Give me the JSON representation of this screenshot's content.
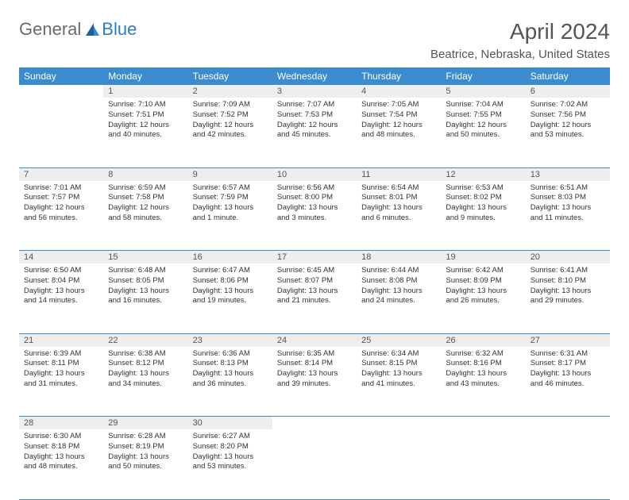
{
  "brand": {
    "word1": "General",
    "word2": "Blue"
  },
  "title": "April 2024",
  "location": "Beatrice, Nebraska, United States",
  "headers": [
    "Sunday",
    "Monday",
    "Tuesday",
    "Wednesday",
    "Thursday",
    "Friday",
    "Saturday"
  ],
  "colors": {
    "header_bg": "#3a8ccf",
    "header_text": "#ffffff",
    "daynum_bg": "#eeeeee",
    "border": "#3a8ccf",
    "logo_gray": "#6a6a6a",
    "logo_blue": "#2e7cc2"
  },
  "weeks": [
    [
      null,
      {
        "n": "1",
        "sr": "7:10 AM",
        "ss": "7:51 PM",
        "d1": "Daylight: 12 hours",
        "d2": "and 40 minutes."
      },
      {
        "n": "2",
        "sr": "7:09 AM",
        "ss": "7:52 PM",
        "d1": "Daylight: 12 hours",
        "d2": "and 42 minutes."
      },
      {
        "n": "3",
        "sr": "7:07 AM",
        "ss": "7:53 PM",
        "d1": "Daylight: 12 hours",
        "d2": "and 45 minutes."
      },
      {
        "n": "4",
        "sr": "7:05 AM",
        "ss": "7:54 PM",
        "d1": "Daylight: 12 hours",
        "d2": "and 48 minutes."
      },
      {
        "n": "5",
        "sr": "7:04 AM",
        "ss": "7:55 PM",
        "d1": "Daylight: 12 hours",
        "d2": "and 50 minutes."
      },
      {
        "n": "6",
        "sr": "7:02 AM",
        "ss": "7:56 PM",
        "d1": "Daylight: 12 hours",
        "d2": "and 53 minutes."
      }
    ],
    [
      {
        "n": "7",
        "sr": "7:01 AM",
        "ss": "7:57 PM",
        "d1": "Daylight: 12 hours",
        "d2": "and 56 minutes."
      },
      {
        "n": "8",
        "sr": "6:59 AM",
        "ss": "7:58 PM",
        "d1": "Daylight: 12 hours",
        "d2": "and 58 minutes."
      },
      {
        "n": "9",
        "sr": "6:57 AM",
        "ss": "7:59 PM",
        "d1": "Daylight: 13 hours",
        "d2": "and 1 minute."
      },
      {
        "n": "10",
        "sr": "6:56 AM",
        "ss": "8:00 PM",
        "d1": "Daylight: 13 hours",
        "d2": "and 3 minutes."
      },
      {
        "n": "11",
        "sr": "6:54 AM",
        "ss": "8:01 PM",
        "d1": "Daylight: 13 hours",
        "d2": "and 6 minutes."
      },
      {
        "n": "12",
        "sr": "6:53 AM",
        "ss": "8:02 PM",
        "d1": "Daylight: 13 hours",
        "d2": "and 9 minutes."
      },
      {
        "n": "13",
        "sr": "6:51 AM",
        "ss": "8:03 PM",
        "d1": "Daylight: 13 hours",
        "d2": "and 11 minutes."
      }
    ],
    [
      {
        "n": "14",
        "sr": "6:50 AM",
        "ss": "8:04 PM",
        "d1": "Daylight: 13 hours",
        "d2": "and 14 minutes."
      },
      {
        "n": "15",
        "sr": "6:48 AM",
        "ss": "8:05 PM",
        "d1": "Daylight: 13 hours",
        "d2": "and 16 minutes."
      },
      {
        "n": "16",
        "sr": "6:47 AM",
        "ss": "8:06 PM",
        "d1": "Daylight: 13 hours",
        "d2": "and 19 minutes."
      },
      {
        "n": "17",
        "sr": "6:45 AM",
        "ss": "8:07 PM",
        "d1": "Daylight: 13 hours",
        "d2": "and 21 minutes."
      },
      {
        "n": "18",
        "sr": "6:44 AM",
        "ss": "8:08 PM",
        "d1": "Daylight: 13 hours",
        "d2": "and 24 minutes."
      },
      {
        "n": "19",
        "sr": "6:42 AM",
        "ss": "8:09 PM",
        "d1": "Daylight: 13 hours",
        "d2": "and 26 minutes."
      },
      {
        "n": "20",
        "sr": "6:41 AM",
        "ss": "8:10 PM",
        "d1": "Daylight: 13 hours",
        "d2": "and 29 minutes."
      }
    ],
    [
      {
        "n": "21",
        "sr": "6:39 AM",
        "ss": "8:11 PM",
        "d1": "Daylight: 13 hours",
        "d2": "and 31 minutes."
      },
      {
        "n": "22",
        "sr": "6:38 AM",
        "ss": "8:12 PM",
        "d1": "Daylight: 13 hours",
        "d2": "and 34 minutes."
      },
      {
        "n": "23",
        "sr": "6:36 AM",
        "ss": "8:13 PM",
        "d1": "Daylight: 13 hours",
        "d2": "and 36 minutes."
      },
      {
        "n": "24",
        "sr": "6:35 AM",
        "ss": "8:14 PM",
        "d1": "Daylight: 13 hours",
        "d2": "and 39 minutes."
      },
      {
        "n": "25",
        "sr": "6:34 AM",
        "ss": "8:15 PM",
        "d1": "Daylight: 13 hours",
        "d2": "and 41 minutes."
      },
      {
        "n": "26",
        "sr": "6:32 AM",
        "ss": "8:16 PM",
        "d1": "Daylight: 13 hours",
        "d2": "and 43 minutes."
      },
      {
        "n": "27",
        "sr": "6:31 AM",
        "ss": "8:17 PM",
        "d1": "Daylight: 13 hours",
        "d2": "and 46 minutes."
      }
    ],
    [
      {
        "n": "28",
        "sr": "6:30 AM",
        "ss": "8:18 PM",
        "d1": "Daylight: 13 hours",
        "d2": "and 48 minutes."
      },
      {
        "n": "29",
        "sr": "6:28 AM",
        "ss": "8:19 PM",
        "d1": "Daylight: 13 hours",
        "d2": "and 50 minutes."
      },
      {
        "n": "30",
        "sr": "6:27 AM",
        "ss": "8:20 PM",
        "d1": "Daylight: 13 hours",
        "d2": "and 53 minutes."
      },
      null,
      null,
      null,
      null
    ]
  ],
  "labels": {
    "sunrise": "Sunrise: ",
    "sunset": "Sunset: "
  }
}
